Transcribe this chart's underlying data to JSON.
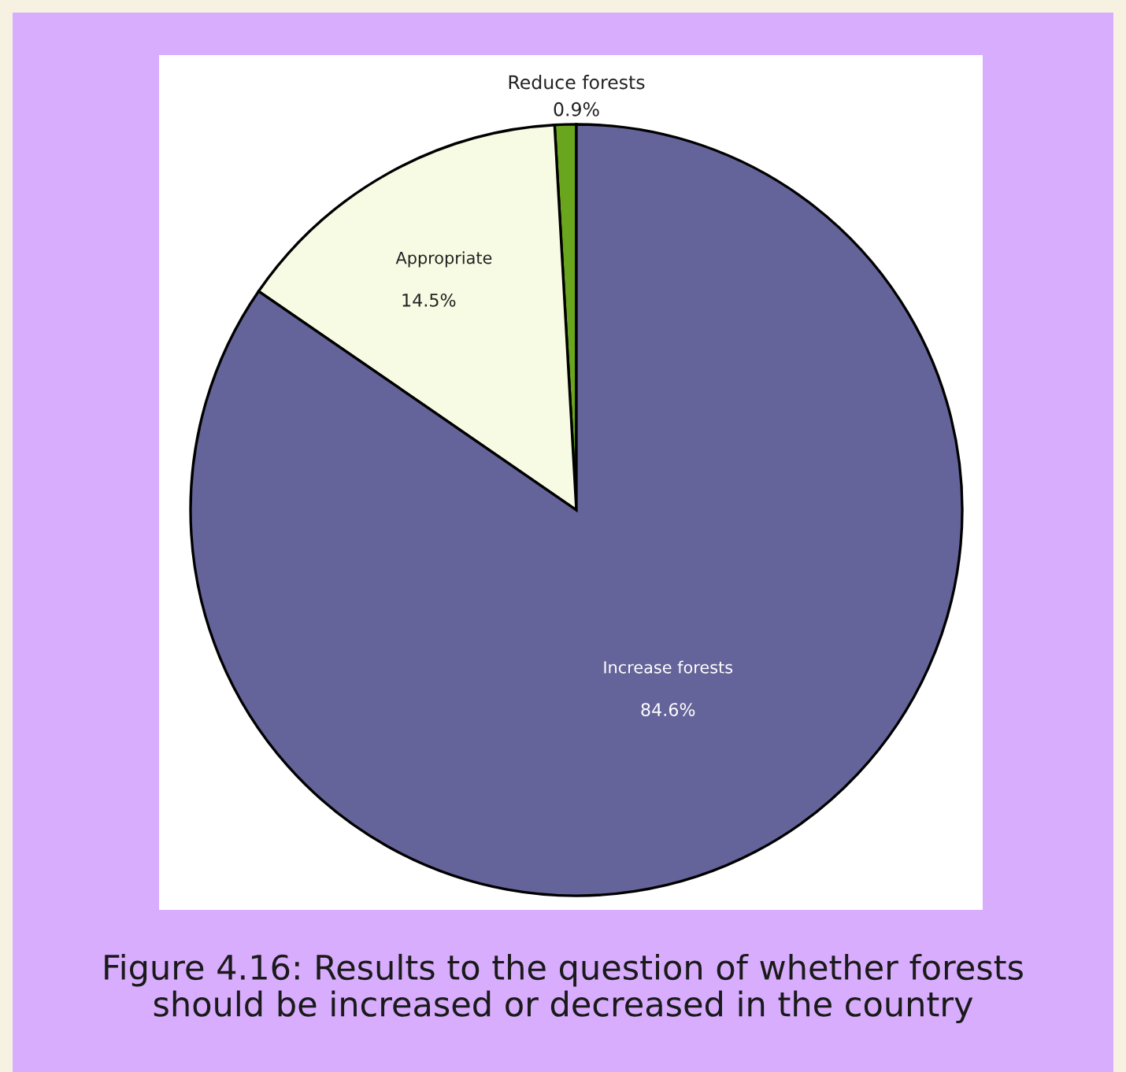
{
  "chart_data": {
    "type": "pie",
    "categories": [
      "Reduce forests",
      "Appropriate",
      "Increase forests"
    ],
    "values": [
      0.9,
      14.5,
      84.6
    ],
    "value_labels": [
      "0.9%",
      "14.5%",
      "84.6%"
    ],
    "colors": [
      "#6aa51e",
      "#f8fbe3",
      "#65649a"
    ],
    "annotations": [
      "Figure 4.16: Results to the question of whether forests should be increased or decreased in the country"
    ]
  }
}
